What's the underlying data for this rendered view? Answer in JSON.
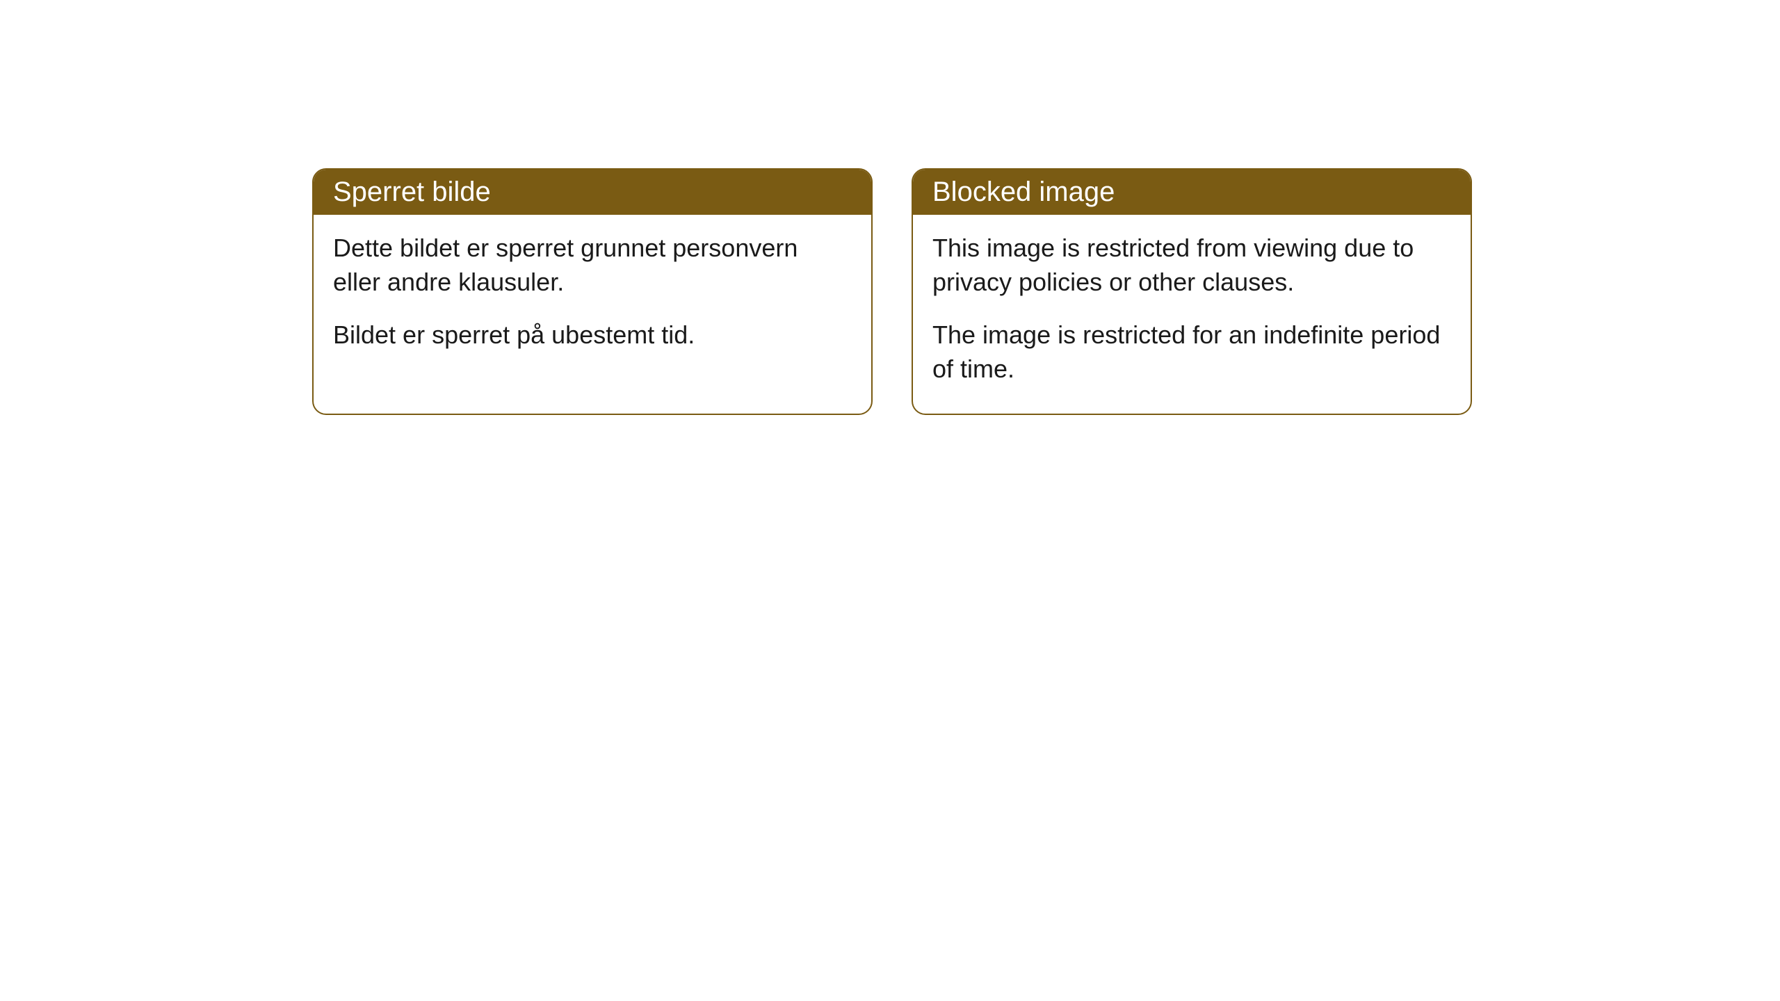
{
  "cards": [
    {
      "title": "Sperret bilde",
      "body_p1": "Dette bildet er sperret grunnet personvern eller andre klausuler.",
      "body_p2": "Bildet er sperret på ubestemt tid."
    },
    {
      "title": "Blocked image",
      "body_p1": "This image is restricted from viewing due to privacy policies or other clauses.",
      "body_p2": "The image is restricted for an indefinite period of time."
    }
  ],
  "style": {
    "header_bg": "#7a5b13",
    "header_text_color": "#ffffff",
    "border_color": "#7a5b13",
    "body_bg": "#ffffff",
    "body_text_color": "#1a1a1a",
    "border_radius": 20,
    "header_fontsize": 40,
    "body_fontsize": 36
  }
}
